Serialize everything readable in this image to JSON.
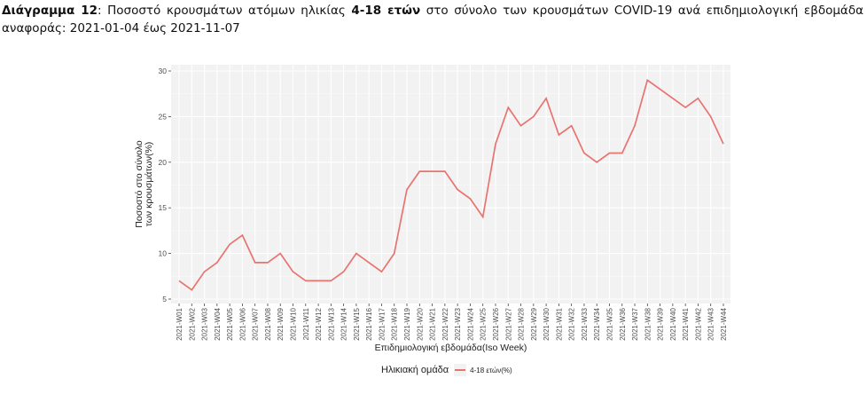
{
  "caption": {
    "label": "Διάγραμμα 12",
    "text_before": ":  Ποσοστό κρουσμάτων ατόμων ηλικίας ",
    "bold_group": "4-18 ετών",
    "text_after": " στο σύνολο των κρουσμάτων COVID-19 ανά επιδημιολογική εβδομάδα αναφοράς: 2021-01-04 έως 2021-11-07"
  },
  "legend": {
    "title": "Ηλικιακή ομάδα",
    "items": [
      {
        "label": "4-18 ετών(%)",
        "color": "#e8736f"
      }
    ]
  },
  "chart_data": {
    "type": "line",
    "title": "",
    "xlabel": "Επιδημιολογική εβδομάδα(Iso Week)",
    "ylabel": "Ποσοστό στο σύνολο των κρουσμάτων(%)",
    "ylabel_lines": [
      "Ποσοστό στο σύνολο",
      "των κρουσμάτων(%)"
    ],
    "ylim": [
      5,
      30
    ],
    "yticks": [
      5,
      10,
      15,
      20,
      25,
      30
    ],
    "grid": true,
    "legend_position": "bottom",
    "categories": [
      "2021-W01",
      "2021-W02",
      "2021-W03",
      "2021-W04",
      "2021-W05",
      "2021-W06",
      "2021-W07",
      "2021-W08",
      "2021-W09",
      "2021-W10",
      "2021-W11",
      "2021-W12",
      "2021-W13",
      "2021-W14",
      "2021-W15",
      "2021-W16",
      "2021-W17",
      "2021-W18",
      "2021-W19",
      "2021-W20",
      "2021-W21",
      "2021-W22",
      "2021-W23",
      "2021-W24",
      "2021-W25",
      "2021-W26",
      "2021-W27",
      "2021-W28",
      "2021-W29",
      "2021-W30",
      "2021-W31",
      "2021-W32",
      "2021-W33",
      "2021-W34",
      "2021-W35",
      "2021-W36",
      "2021-W37",
      "2021-W38",
      "2021-W39",
      "2021-W40",
      "2021-W41",
      "2021-W42",
      "2021-W43",
      "2021-W44"
    ],
    "series": [
      {
        "name": "4-18 ετών(%)",
        "color": "#e8736f",
        "values": [
          7,
          6,
          8,
          9,
          11,
          12,
          9,
          9,
          10,
          8,
          7,
          7,
          7,
          8,
          10,
          9,
          8,
          10,
          17,
          19,
          19,
          19,
          17,
          16,
          14,
          22,
          26,
          24,
          25,
          27,
          23,
          24,
          21,
          20,
          21,
          21,
          24,
          29,
          28,
          27,
          26,
          27,
          25,
          22
        ]
      }
    ]
  }
}
